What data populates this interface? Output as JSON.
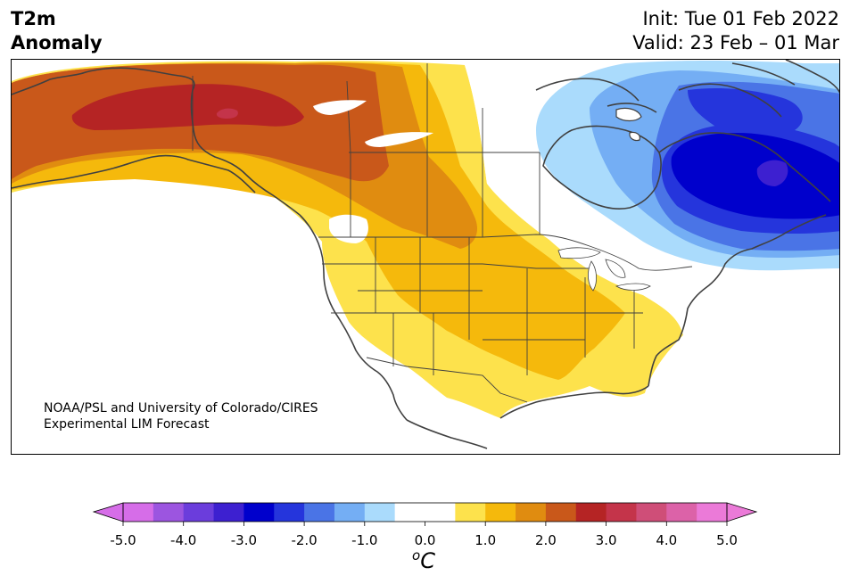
{
  "header": {
    "variable": "T2m",
    "subtitle": "Anomaly",
    "init": "Init: Tue 01 Feb 2022",
    "valid": "Valid: 23 Feb – 01 Mar"
  },
  "credit": {
    "line1": "NOAA/PSL and University of Colorado/CIRES",
    "line2": "Experimental LIM Forecast"
  },
  "colorbar": {
    "tick_labels": [
      "-5.0",
      "-4.0",
      "-3.0",
      "-2.0",
      "-1.0",
      "0.0",
      "1.0",
      "2.0",
      "3.0",
      "4.0",
      "5.0"
    ],
    "unit_base": "C",
    "unit_sup": "o",
    "colors": [
      "#d66de8",
      "#9c55e0",
      "#6b3ddc",
      "#3d20d0",
      "#0000cc",
      "#2535dc",
      "#4a74e6",
      "#74aef4",
      "#aadbfc",
      "#ffffff",
      "#ffffff",
      "#fde24c",
      "#f5b90c",
      "#e08c10",
      "#c9581a",
      "#b52424",
      "#c4344a",
      "#cf4e78",
      "#dc62a8",
      "#eb7ad8"
    ],
    "under_color": "#d66de8",
    "over_color": "#eb7ad8",
    "min": -5.0,
    "max": 5.0
  },
  "anomaly_colors": {
    "warm_1": "#fde24c",
    "warm_2": "#f5b90c",
    "warm_3": "#e08c10",
    "warm_4": "#c9581a",
    "warm_5": "#b52424",
    "warm_6": "#c4344a",
    "cool_1": "#aadbfc",
    "cool_2": "#74aef4",
    "cool_3": "#4a74e6",
    "cool_4": "#2535dc",
    "cool_5": "#0000cc",
    "cool_6": "#3d20d0"
  }
}
